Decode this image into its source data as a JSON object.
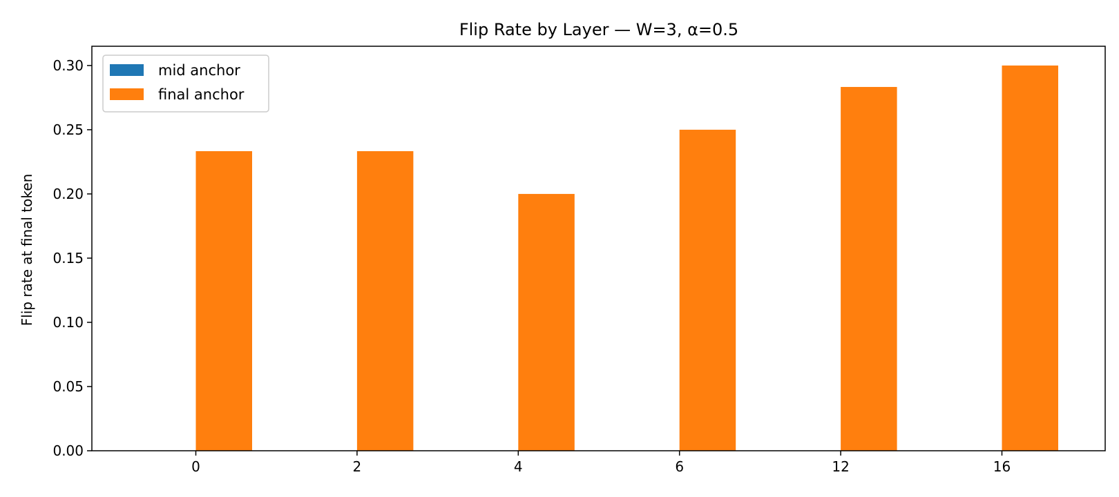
{
  "chart_data": {
    "type": "bar",
    "title": "Flip Rate by Layer — W=3, α=0.5",
    "xlabel": "",
    "ylabel": "Flip rate at final token",
    "categories": [
      "0",
      "2",
      "4",
      "6",
      "12",
      "16"
    ],
    "series": [
      {
        "name": "mid anchor",
        "color": "#1f77b4",
        "values": [
          0,
          0,
          0,
          0,
          0,
          0
        ]
      },
      {
        "name": "final anchor",
        "color": "#ff7f0e",
        "values": [
          0.2333,
          0.2333,
          0.2,
          0.25,
          0.2833,
          0.3
        ]
      }
    ],
    "ylim": [
      0,
      0.315
    ],
    "yticks": [
      "0.00",
      "0.05",
      "0.10",
      "0.15",
      "0.20",
      "0.25",
      "0.30"
    ],
    "grid": false,
    "legend_position": "top-left"
  }
}
